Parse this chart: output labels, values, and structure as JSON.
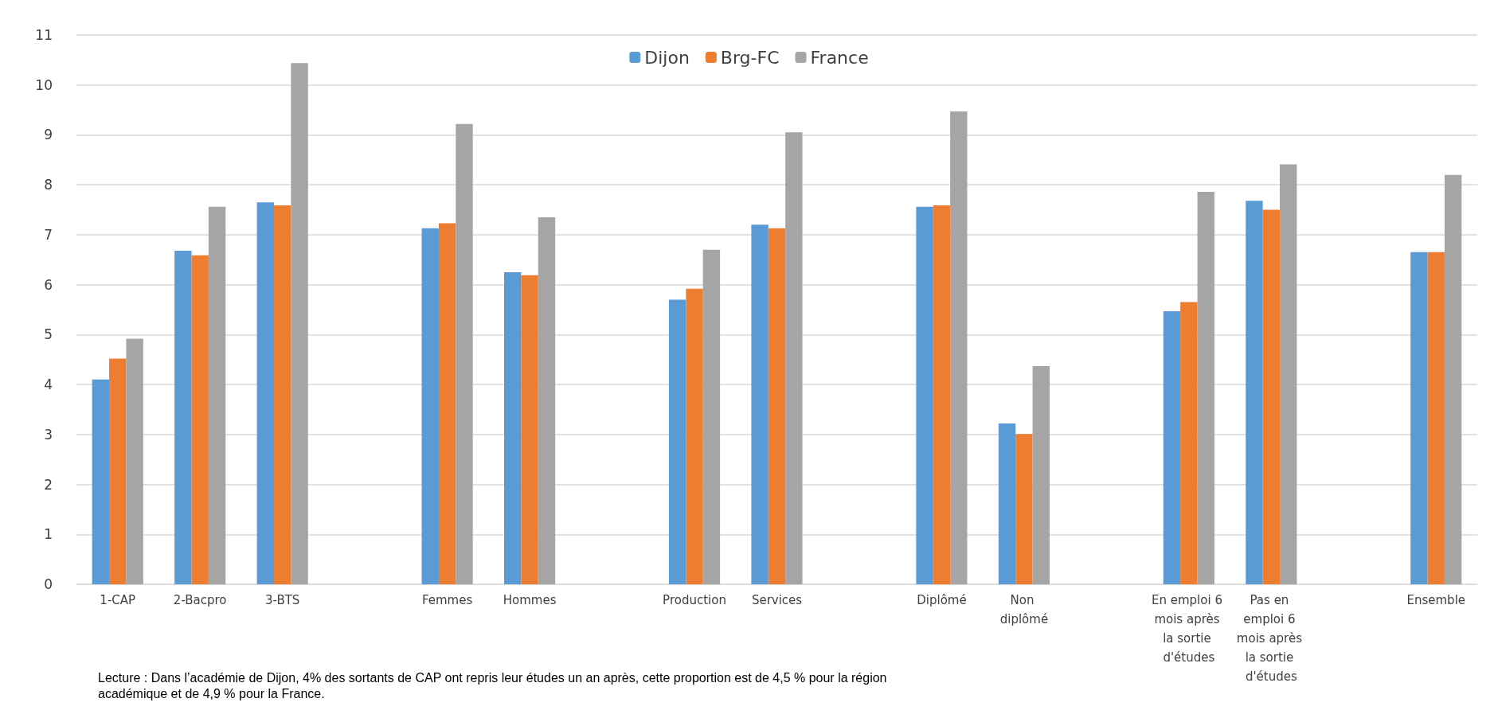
{
  "chart_data": {
    "type": "bar",
    "categories": [
      "1-CAP",
      "2-Bacpro",
      "3-BTS",
      null,
      "Femmes",
      "Hommes",
      null,
      "Production",
      "Services",
      null,
      "Diplômé",
      "Non diplômé",
      null,
      "En emploi 6 mois après la sortie d'études",
      "Pas en emploi 6 mois après la sortie d'études",
      null,
      "Ensemble"
    ],
    "series": [
      {
        "name": "Dijon",
        "color": "#5b9bd5",
        "values": [
          4.1,
          6.68,
          7.65,
          null,
          7.13,
          6.25,
          null,
          5.7,
          7.2,
          null,
          7.56,
          3.22,
          null,
          5.47,
          7.68,
          null,
          6.65
        ]
      },
      {
        "name": "Brg-FC",
        "color": "#ed7d31",
        "values": [
          4.52,
          6.59,
          7.59,
          null,
          7.23,
          6.19,
          null,
          5.92,
          7.13,
          null,
          7.59,
          3.01,
          null,
          5.65,
          7.5,
          null,
          6.65
        ]
      },
      {
        "name": "France",
        "color": "#a5a5a5",
        "values": [
          4.92,
          7.56,
          10.44,
          null,
          9.22,
          7.35,
          null,
          6.7,
          9.05,
          null,
          9.47,
          4.37,
          null,
          7.86,
          8.41,
          null,
          8.2
        ]
      }
    ],
    "ylim": [
      0,
      11
    ],
    "yticks": [
      0,
      1,
      2,
      3,
      4,
      5,
      6,
      7,
      8,
      9,
      10,
      11
    ],
    "grid": "y",
    "legend": "top",
    "annotations": [
      "Lecture : Dans l’académie de Dijon, 4% des sortants de CAP ont repris leur études un an après, cette proportion est de 4,5 % pour la région académique et de 4,9 % pour la France."
    ]
  }
}
